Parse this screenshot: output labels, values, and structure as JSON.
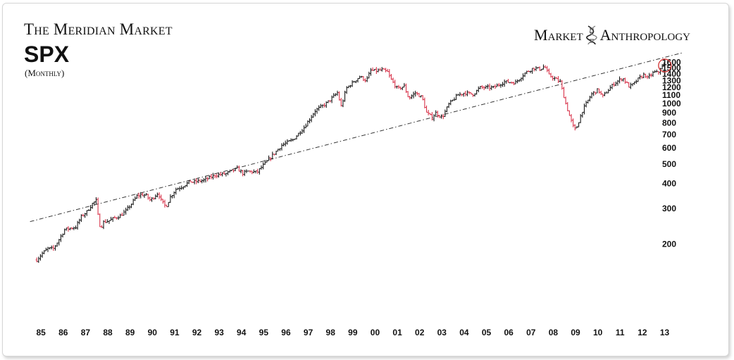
{
  "header": {
    "publication": "The Meridian Market",
    "title": "SPX",
    "subtitle": "(Monthly)",
    "brand_left": "Market",
    "brand_right": "Anthropology",
    "brand_icon": "dna-helix-icon"
  },
  "colors": {
    "up": "#1a1a1a",
    "down": "#d8334a",
    "trendline": "#222222",
    "highlight": "#d13030"
  },
  "chart_data": {
    "type": "ohlc",
    "yscale": "log",
    "ylim": [
      130,
      1700
    ],
    "y_tick_labels": [
      "200",
      "300",
      "400",
      "500",
      "600",
      "700",
      "800",
      "900",
      "1000",
      "1100",
      "1200",
      "1300",
      "1400",
      "1500",
      "1600"
    ],
    "x_tick_labels": [
      "85",
      "86",
      "87",
      "88",
      "89",
      "90",
      "91",
      "92",
      "93",
      "94",
      "95",
      "96",
      "97",
      "98",
      "99",
      "00",
      "01",
      "02",
      "03",
      "04",
      "05",
      "06",
      "07",
      "08",
      "09",
      "10",
      "11",
      "12",
      "13"
    ],
    "xlim": [
      1984.9,
      2013.3
    ],
    "series": [
      {
        "values": [
          [
            1985.0,
            167
          ],
          [
            1985.25,
            180
          ],
          [
            1985.5,
            190
          ],
          [
            1985.75,
            190
          ],
          [
            1986.0,
            211
          ],
          [
            1986.25,
            236
          ],
          [
            1986.5,
            240
          ],
          [
            1986.75,
            243
          ],
          [
            1987.0,
            274
          ],
          [
            1987.25,
            290
          ],
          [
            1987.5,
            318
          ],
          [
            1987.67,
            329
          ],
          [
            1987.8,
            250
          ],
          [
            1987.9,
            245
          ],
          [
            1988.0,
            257
          ],
          [
            1988.25,
            262
          ],
          [
            1988.5,
            270
          ],
          [
            1988.75,
            277
          ],
          [
            1989.0,
            292
          ],
          [
            1989.25,
            317
          ],
          [
            1989.5,
            347
          ],
          [
            1989.67,
            352
          ],
          [
            1989.9,
            350
          ],
          [
            1990.1,
            330
          ],
          [
            1990.45,
            360
          ],
          [
            1990.58,
            330
          ],
          [
            1990.8,
            306
          ],
          [
            1991.0,
            343
          ],
          [
            1991.25,
            375
          ],
          [
            1991.5,
            385
          ],
          [
            1991.9,
            410
          ],
          [
            1992.0,
            407
          ],
          [
            1992.5,
            415
          ],
          [
            1993.0,
            440
          ],
          [
            1993.5,
            448
          ],
          [
            1994.0,
            475
          ],
          [
            1994.25,
            450
          ],
          [
            1994.5,
            460
          ],
          [
            1994.9,
            455
          ],
          [
            1995.0,
            470
          ],
          [
            1995.5,
            540
          ],
          [
            1996.0,
            620
          ],
          [
            1996.5,
            660
          ],
          [
            1997.0,
            760
          ],
          [
            1997.5,
            920
          ],
          [
            1998.0,
            1000
          ],
          [
            1998.5,
            1130
          ],
          [
            1998.67,
            965
          ],
          [
            1998.9,
            1190
          ],
          [
            1999.5,
            1360
          ],
          [
            1999.8,
            1300
          ],
          [
            2000.0,
            1460
          ],
          [
            2000.25,
            1450
          ],
          [
            2000.5,
            1470
          ],
          [
            2000.75,
            1430
          ],
          [
            2000.9,
            1320
          ],
          [
            2001.2,
            1180
          ],
          [
            2001.5,
            1220
          ],
          [
            2001.7,
            1060
          ],
          [
            2002.0,
            1130
          ],
          [
            2002.3,
            1070
          ],
          [
            2002.5,
            900
          ],
          [
            2002.75,
            850
          ],
          [
            2002.9,
            900
          ],
          [
            2003.2,
            850
          ],
          [
            2003.5,
            990
          ],
          [
            2003.9,
            1100
          ],
          [
            2004.2,
            1130
          ],
          [
            2004.6,
            1110
          ],
          [
            2004.9,
            1200
          ],
          [
            2005.5,
            1200
          ],
          [
            2006.0,
            1280
          ],
          [
            2006.5,
            1270
          ],
          [
            2006.9,
            1410
          ],
          [
            2007.3,
            1500
          ],
          [
            2007.6,
            1480
          ],
          [
            2007.8,
            1530
          ],
          [
            2008.0,
            1380
          ],
          [
            2008.5,
            1280
          ],
          [
            2008.75,
            1000
          ],
          [
            2008.9,
            880
          ],
          [
            2009.1,
            760
          ],
          [
            2009.2,
            740
          ],
          [
            2009.5,
            920
          ],
          [
            2009.9,
            1110
          ],
          [
            2010.2,
            1170
          ],
          [
            2010.4,
            1080
          ],
          [
            2010.9,
            1250
          ],
          [
            2011.3,
            1340
          ],
          [
            2011.6,
            1210
          ],
          [
            2011.8,
            1250
          ],
          [
            2012.0,
            1320
          ],
          [
            2012.3,
            1400
          ],
          [
            2012.4,
            1330
          ],
          [
            2012.7,
            1430
          ],
          [
            2012.9,
            1420
          ],
          [
            2013.0,
            1500
          ],
          [
            2013.15,
            1540
          ],
          [
            2013.2,
            1569
          ]
        ]
      },
      {
        "values": [
          [
            1985.0,
            264
          ],
          [
            2013.33,
            1710
          ]
        ]
      }
    ]
  }
}
